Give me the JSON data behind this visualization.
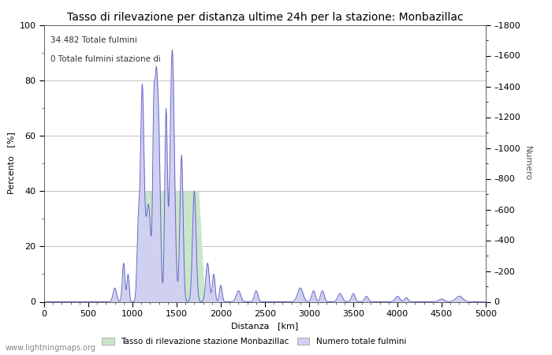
{
  "title": "Tasso di rilevazione per distanza ultime 24h per la stazione: Monbazillac",
  "xlabel": "Distanza   [km]",
  "ylabel_left": "Percento   [%]",
  "ylabel_right": "Numero",
  "annotation_line1": "34.482 Totale fulmini",
  "annotation_line2": "0 Totale fulmini stazione di",
  "legend_label1": "Tasso di rilevazione stazione Monbazillac",
  "legend_label2": "Numero totale fulmini",
  "watermark": "www.lightningmaps.org",
  "xlim": [
    0,
    5000
  ],
  "ylim_left": [
    0,
    100
  ],
  "ylim_right": [
    0,
    1800
  ],
  "xticks": [
    0,
    500,
    1000,
    1500,
    2000,
    2500,
    3000,
    3500,
    4000,
    4500,
    5000
  ],
  "yticks_left": [
    0,
    20,
    40,
    60,
    80,
    100
  ],
  "yticks_right": [
    0,
    200,
    400,
    600,
    800,
    1000,
    1200,
    1400,
    1600,
    1800
  ],
  "fill_color_green": "#c8e6c8",
  "fill_color_blue": "#d0d0f0",
  "line_color": "#6666cc",
  "background_color": "#ffffff",
  "grid_color": "#aaaaaa",
  "title_fontsize": 10,
  "axis_fontsize": 8,
  "tick_fontsize": 8,
  "minor_tick_color": "#555555"
}
